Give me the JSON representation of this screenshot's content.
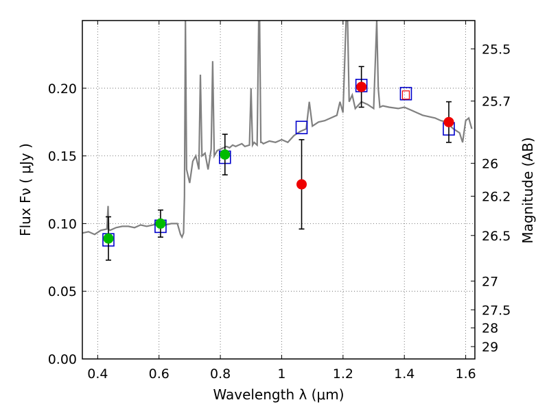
{
  "chart_data": {
    "type": "scatter",
    "xlabel": "Wavelength  λ (μm)",
    "ylabel": "Flux  Fν ( μJy )",
    "y2label": "Magnitude (AB)",
    "xlim": [
      0.35,
      1.63
    ],
    "ylim": [
      0.0,
      0.25
    ],
    "grid": true,
    "x_ticks": [
      {
        "value": 0.4,
        "label": "0.4"
      },
      {
        "value": 0.6,
        "label": "0.6"
      },
      {
        "value": 0.8,
        "label": "0.8"
      },
      {
        "value": 1.0,
        "label": "1"
      },
      {
        "value": 1.2,
        "label": "1.2"
      },
      {
        "value": 1.4,
        "label": "1.4"
      },
      {
        "value": 1.6,
        "label": "1.6"
      }
    ],
    "y_ticks": [
      {
        "value": 0.0,
        "label": "0.00"
      },
      {
        "value": 0.05,
        "label": "0.05"
      },
      {
        "value": 0.1,
        "label": "0.10"
      },
      {
        "value": 0.15,
        "label": "0.15"
      },
      {
        "value": 0.2,
        "label": "0.20"
      }
    ],
    "y2_ticks": [
      {
        "value": 25.5,
        "label": "25.5"
      },
      {
        "value": 25.7,
        "label": "25.7"
      },
      {
        "value": 26.0,
        "label": "26"
      },
      {
        "value": 26.2,
        "label": "26.2"
      },
      {
        "value": 26.5,
        "label": "26.5"
      },
      {
        "value": 27.0,
        "label": "27"
      },
      {
        "value": 27.5,
        "label": "27.5"
      },
      {
        "value": 28.0,
        "label": "28"
      },
      {
        "value": 29.0,
        "label": "29"
      }
    ],
    "series": [
      {
        "kind": "spectrum-line",
        "color": "#808080",
        "x": [
          0.35,
          0.37,
          0.39,
          0.41,
          0.43,
          0.434,
          0.436,
          0.44,
          0.46,
          0.48,
          0.5,
          0.52,
          0.54,
          0.56,
          0.58,
          0.6,
          0.62,
          0.64,
          0.66,
          0.67,
          0.675,
          0.68,
          0.683,
          0.686,
          0.69,
          0.7,
          0.71,
          0.72,
          0.73,
          0.735,
          0.74,
          0.75,
          0.76,
          0.77,
          0.775,
          0.78,
          0.79,
          0.8,
          0.81,
          0.82,
          0.83,
          0.84,
          0.85,
          0.86,
          0.87,
          0.88,
          0.895,
          0.9,
          0.905,
          0.91,
          0.92,
          0.925,
          0.928,
          0.932,
          0.935,
          0.94,
          0.96,
          0.98,
          1.0,
          1.02,
          1.04,
          1.06,
          1.08,
          1.09,
          1.1,
          1.12,
          1.14,
          1.16,
          1.18,
          1.19,
          1.2,
          1.21,
          1.215,
          1.22,
          1.23,
          1.24,
          1.26,
          1.28,
          1.3,
          1.31,
          1.315,
          1.32,
          1.33,
          1.35,
          1.38,
          1.4,
          1.42,
          1.44,
          1.46,
          1.48,
          1.5,
          1.52,
          1.54,
          1.55,
          1.56,
          1.58,
          1.59,
          1.6,
          1.61,
          1.62
        ],
        "y": [
          0.093,
          0.094,
          0.092,
          0.095,
          0.096,
          0.113,
          0.096,
          0.095,
          0.097,
          0.098,
          0.098,
          0.097,
          0.099,
          0.098,
          0.099,
          0.1,
          0.099,
          0.1,
          0.1,
          0.092,
          0.09,
          0.093,
          0.12,
          0.25,
          0.14,
          0.13,
          0.146,
          0.15,
          0.14,
          0.21,
          0.15,
          0.152,
          0.14,
          0.155,
          0.22,
          0.15,
          0.154,
          0.155,
          0.156,
          0.157,
          0.156,
          0.158,
          0.157,
          0.158,
          0.159,
          0.157,
          0.158,
          0.2,
          0.158,
          0.16,
          0.158,
          0.25,
          0.25,
          0.16,
          0.16,
          0.159,
          0.161,
          0.16,
          0.162,
          0.16,
          0.165,
          0.168,
          0.17,
          0.19,
          0.172,
          0.175,
          0.176,
          0.178,
          0.18,
          0.19,
          0.182,
          0.25,
          0.25,
          0.19,
          0.195,
          0.185,
          0.19,
          0.188,
          0.185,
          0.25,
          0.2,
          0.186,
          0.187,
          0.186,
          0.185,
          0.186,
          0.184,
          0.182,
          0.18,
          0.179,
          0.178,
          0.176,
          0.175,
          0.172,
          0.17,
          0.167,
          0.16,
          0.176,
          0.178,
          0.17
        ]
      },
      {
        "kind": "model-box",
        "color": "#0000cc",
        "x": [
          0.435,
          0.605,
          0.815,
          1.065,
          1.26,
          1.405,
          1.545
        ],
        "y": [
          0.088,
          0.098,
          0.149,
          0.171,
          0.202,
          0.196,
          0.17
        ]
      },
      {
        "kind": "green-point",
        "color": "#00bb00",
        "x": [
          0.435,
          0.605,
          0.815
        ],
        "y": [
          0.089,
          0.1,
          0.151
        ],
        "err": [
          0.016,
          0.01,
          0.015
        ]
      },
      {
        "kind": "red-point",
        "color": "#ee0000",
        "x": [
          1.065,
          1.26,
          1.545
        ],
        "y": [
          0.129,
          0.201,
          0.175
        ],
        "err": [
          0.033,
          0.015,
          0.015
        ]
      },
      {
        "kind": "open-red-square",
        "color": "#ee0000",
        "x": [
          1.405
        ],
        "y": [
          0.195
        ]
      }
    ]
  }
}
